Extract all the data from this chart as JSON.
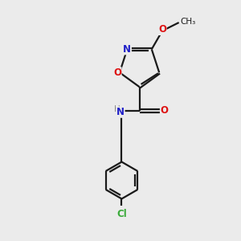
{
  "bg_color": "#ebebeb",
  "bond_color": "#1a1a1a",
  "N_color": "#2020c8",
  "O_color": "#dd1111",
  "Cl_color": "#3aaa3a",
  "H_color": "#888888",
  "line_width": 1.6,
  "font_size": 8.5,
  "figsize": [
    3.0,
    3.0
  ],
  "dpi": 100,
  "xlim": [
    0,
    10
  ],
  "ylim": [
    0,
    10
  ]
}
